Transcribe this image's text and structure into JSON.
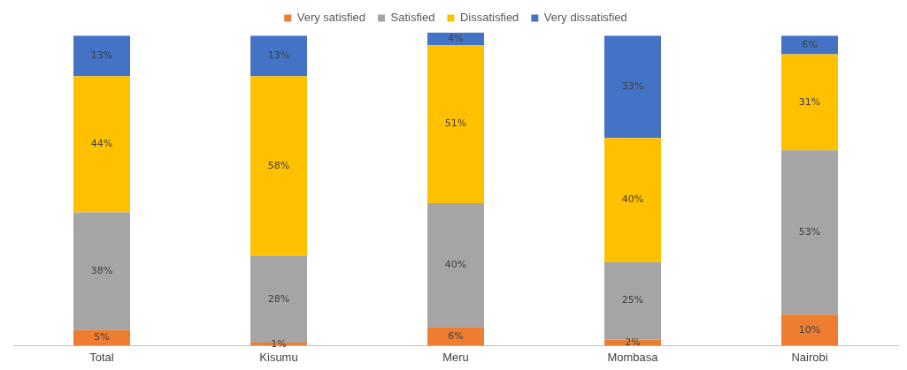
{
  "chart_data": {
    "type": "bar",
    "stacked": true,
    "legend": "top",
    "grid": false,
    "tick_labels": "x",
    "categories": [
      "Total",
      "Kisumu",
      "Meru",
      "Mombasa",
      "Nairobi"
    ],
    "series": [
      {
        "name": "Very satisfied",
        "color": "#ed7d31",
        "values": [
          5,
          1,
          6,
          2,
          10
        ],
        "value_labels": [
          "5%",
          "1%",
          "6%",
          "2%",
          "10%"
        ]
      },
      {
        "name": "Satisfied",
        "color": "#a5a5a5",
        "values": [
          38,
          28,
          40,
          25,
          53
        ],
        "value_labels": [
          "38%",
          "28%",
          "40%",
          "25%",
          "53%"
        ]
      },
      {
        "name": "Dissatisfied",
        "color": "#ffc000",
        "values": [
          44,
          58,
          51,
          40,
          31
        ],
        "value_labels": [
          "44%",
          "58%",
          "51%",
          "40%",
          "31%"
        ]
      },
      {
        "name": "Very dissatisfied",
        "color": "#4472c4",
        "values": [
          13,
          13,
          4,
          33,
          6
        ],
        "value_labels": [
          "13%",
          "13%",
          "4%",
          "33%",
          "6%"
        ]
      }
    ]
  }
}
